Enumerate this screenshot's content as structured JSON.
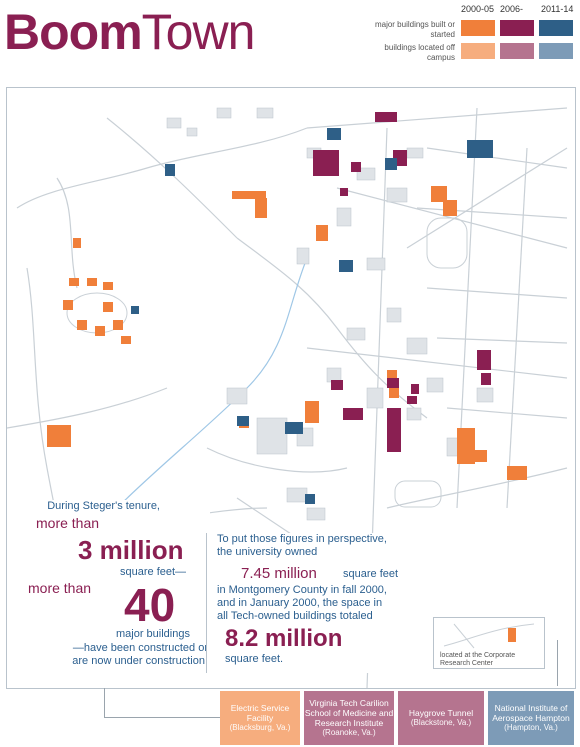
{
  "title": {
    "part1": "Boom",
    "part2": "Town"
  },
  "legend": {
    "years": [
      "2000-05",
      "2006-",
      "2011-14"
    ],
    "row1_label": "major buildings built or started",
    "row2_label": "buildings located off campus",
    "colors_row1": [
      "#f07f3a",
      "#8a1f52",
      "#2e5f87"
    ],
    "colors_row2": [
      "#f6ad7e",
      "#b5748f",
      "#7d9bb7"
    ]
  },
  "steger": {
    "line1": "During Steger's tenure,",
    "line2": "more than",
    "line3": "3 million",
    "line4": "square feet—",
    "line5": "more than",
    "line6": "40",
    "line7": "major buildings",
    "line8": "—have been constructed or",
    "line9": "are now under construction."
  },
  "perspective": {
    "line1": "To put those figures in perspective,",
    "line2": "the university owned",
    "line3": "7.45 million",
    "line4": "square feet",
    "line5": "in Montgomery County in fall 2000,",
    "line6": "and in January 2000, the space in",
    "line7": "all Tech-owned buildings totaled",
    "line8": "8.2 million",
    "line9": "square feet."
  },
  "inset": {
    "note": "located at the Corporate Research Center"
  },
  "offcampus": [
    {
      "name": "Electric Service Facility",
      "place": "(Blacksburg, Va.)",
      "color": "#f6ad7e"
    },
    {
      "name": "Virginia Tech Carilion School of Medicine and Research Institute",
      "place": "(Roanoke, Va.)",
      "color": "#b5748f"
    },
    {
      "name": "Haygrove Tunnel",
      "place": "(Blackstone, Va.)",
      "color": "#b5748f"
    },
    {
      "name": "National Institute of Aerospace Hampton",
      "place": "(Hampton, Va.)",
      "color": "#7d9bb7"
    }
  ]
}
